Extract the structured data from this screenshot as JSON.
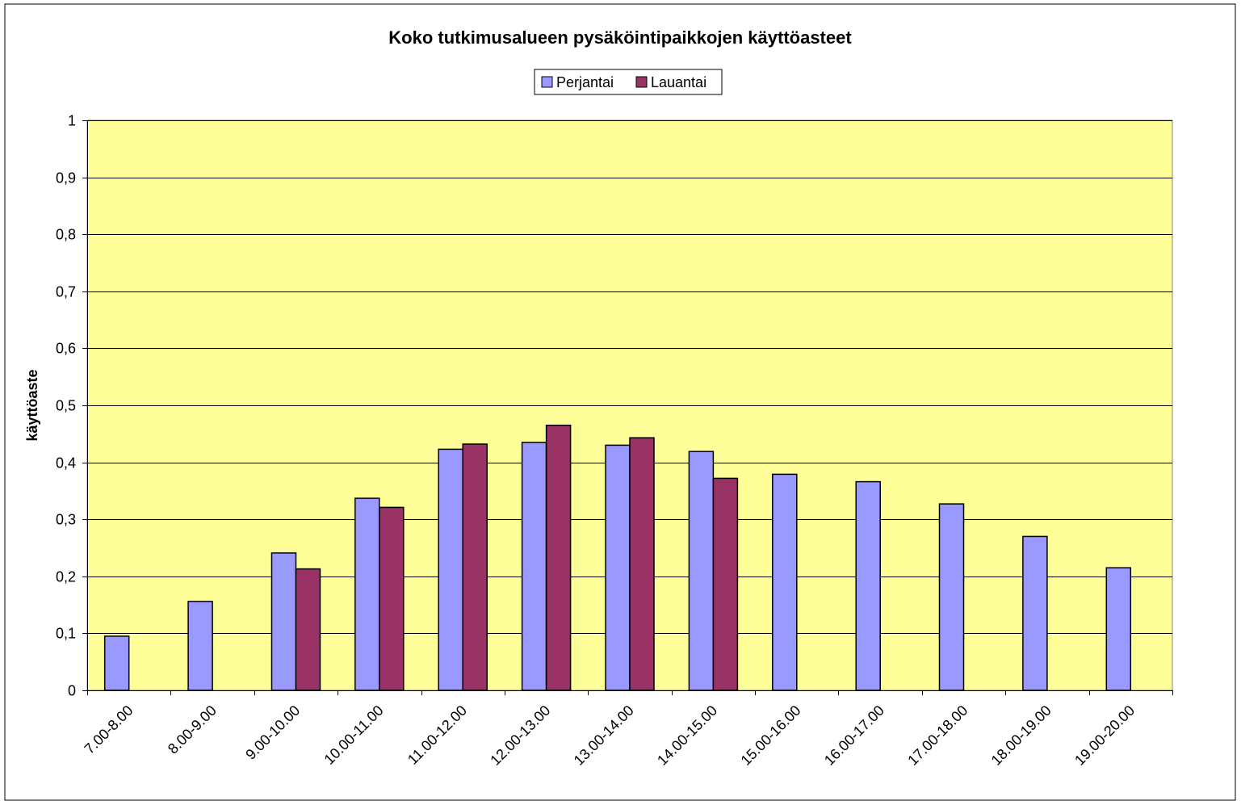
{
  "chart_data": {
    "type": "bar",
    "title": "Koko tutkimusalueen pysäköintipaikkojen käyttöasteet",
    "xlabel": "",
    "ylabel": "käyttöaste",
    "ylim": [
      0,
      1
    ],
    "yticks": [
      "0",
      "0,1",
      "0,2",
      "0,3",
      "0,4",
      "0,5",
      "0,6",
      "0,7",
      "0,8",
      "0,9",
      "1"
    ],
    "yticks_values": [
      0,
      0.1,
      0.2,
      0.3,
      0.4,
      0.5,
      0.6,
      0.7,
      0.8,
      0.9,
      1
    ],
    "grid": true,
    "legend_position": "top-center",
    "plot_background": "#ffff99",
    "categories": [
      "7.00-8.00",
      "8.00-9.00",
      "9.00-10.00",
      "10.00-11.00",
      "11.00-12.00",
      "12.00-13.00",
      "13.00-14.00",
      "14.00-15.00",
      "15.00-16.00",
      "16.00-17.00",
      "17.00-18.00",
      "18.00-19.00",
      "19.00-20.00"
    ],
    "series": [
      {
        "name": "Perjantai",
        "color": "#9999ff",
        "values": [
          0.095,
          0.156,
          0.241,
          0.337,
          0.423,
          0.435,
          0.43,
          0.419,
          0.379,
          0.366,
          0.327,
          0.27,
          0.215
        ]
      },
      {
        "name": "Lauantai",
        "color": "#993366",
        "values": [
          null,
          null,
          0.213,
          0.321,
          0.432,
          0.465,
          0.443,
          0.372,
          null,
          null,
          null,
          null,
          null
        ]
      }
    ]
  }
}
